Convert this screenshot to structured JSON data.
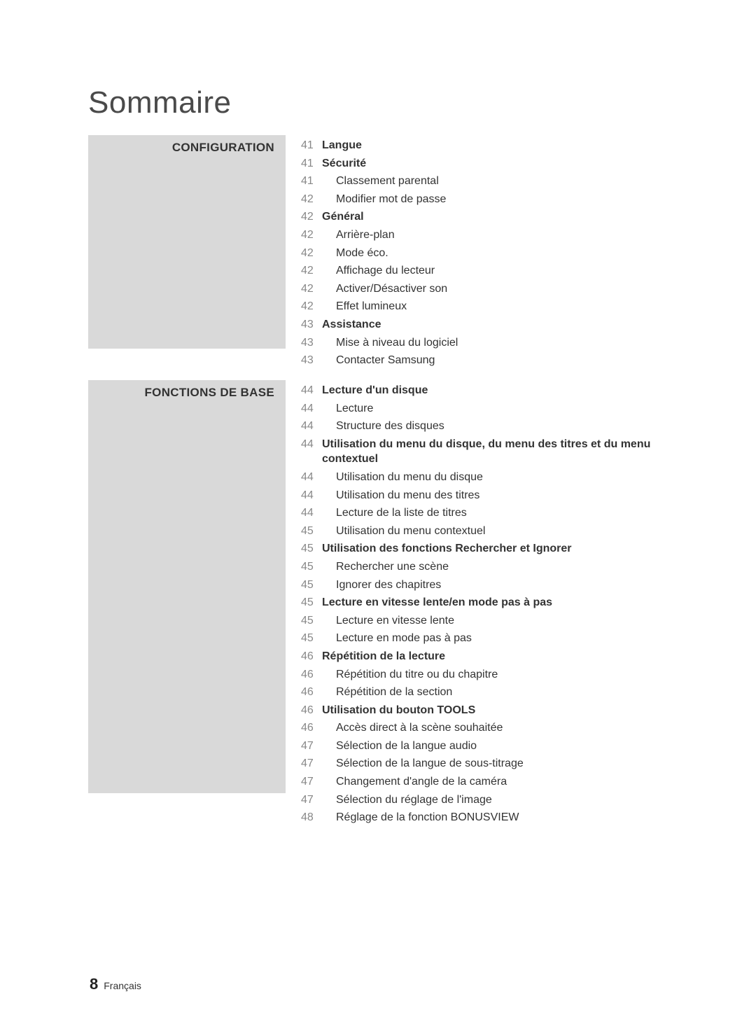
{
  "page": {
    "title": "Sommaire",
    "title_color": "#4a4a4a",
    "title_fontsize": 44,
    "background_color": "#ffffff",
    "label_bg_color": "#d9d9d9",
    "text_color": "#333333",
    "page_number_color": "#888888",
    "body_fontsize": 16,
    "label_fontsize": 17
  },
  "sections": {
    "config": {
      "label": "CONFIGURATION",
      "entries": [
        {
          "page": "41",
          "text": "Langue",
          "bold": true,
          "indent": false
        },
        {
          "page": "41",
          "text": "Sécurité",
          "bold": true,
          "indent": false
        },
        {
          "page": "41",
          "text": "Classement parental",
          "bold": false,
          "indent": true
        },
        {
          "page": "42",
          "text": "Modifier mot de passe",
          "bold": false,
          "indent": true
        },
        {
          "page": "42",
          "text": "Général",
          "bold": true,
          "indent": false
        },
        {
          "page": "42",
          "text": "Arrière-plan",
          "bold": false,
          "indent": true
        },
        {
          "page": "42",
          "text": "Mode éco.",
          "bold": false,
          "indent": true
        },
        {
          "page": "42",
          "text": "Affichage du lecteur",
          "bold": false,
          "indent": true
        },
        {
          "page": "42",
          "text": "Activer/Désactiver son",
          "bold": false,
          "indent": true
        },
        {
          "page": "42",
          "text": "Effet lumineux",
          "bold": false,
          "indent": true
        },
        {
          "page": "43",
          "text": "Assistance",
          "bold": true,
          "indent": false
        },
        {
          "page": "43",
          "text": "Mise à niveau du logiciel",
          "bold": false,
          "indent": true
        },
        {
          "page": "43",
          "text": "Contacter Samsung",
          "bold": false,
          "indent": true
        }
      ]
    },
    "fonctions": {
      "label": "FONCTIONS DE BASE",
      "entries": [
        {
          "page": "44",
          "text": "Lecture d'un disque",
          "bold": true,
          "indent": false
        },
        {
          "page": "44",
          "text": "Lecture",
          "bold": false,
          "indent": true
        },
        {
          "page": "44",
          "text": "Structure des disques",
          "bold": false,
          "indent": true
        },
        {
          "page": "44",
          "text": "Utilisation du menu du disque, du menu des titres et du menu contextuel",
          "bold": true,
          "indent": false
        },
        {
          "page": "44",
          "text": "Utilisation du menu du disque",
          "bold": false,
          "indent": true
        },
        {
          "page": "44",
          "text": "Utilisation du menu des titres",
          "bold": false,
          "indent": true
        },
        {
          "page": "44",
          "text": "Lecture de la liste de titres",
          "bold": false,
          "indent": true
        },
        {
          "page": "45",
          "text": "Utilisation du menu contextuel",
          "bold": false,
          "indent": true
        },
        {
          "page": "45",
          "text": "Utilisation des fonctions Rechercher et Ignorer",
          "bold": true,
          "indent": false
        },
        {
          "page": "45",
          "text": "Rechercher une scène",
          "bold": false,
          "indent": true
        },
        {
          "page": "45",
          "text": "Ignorer des chapitres",
          "bold": false,
          "indent": true
        },
        {
          "page": "45",
          "text": "Lecture en vitesse lente/en mode pas à pas",
          "bold": true,
          "indent": false
        },
        {
          "page": "45",
          "text": "Lecture en vitesse lente",
          "bold": false,
          "indent": true
        },
        {
          "page": "45",
          "text": "Lecture en mode pas à pas",
          "bold": false,
          "indent": true
        },
        {
          "page": "46",
          "text": "Répétition de la lecture",
          "bold": true,
          "indent": false
        },
        {
          "page": "46",
          "text": "Répétition du titre ou du chapitre",
          "bold": false,
          "indent": true
        },
        {
          "page": "46",
          "text": "Répétition de la section",
          "bold": false,
          "indent": true
        },
        {
          "page": "46",
          "text": "Utilisation du bouton TOOLS",
          "bold": true,
          "indent": false
        },
        {
          "page": "46",
          "text": "Accès direct à la scène souhaitée",
          "bold": false,
          "indent": true
        },
        {
          "page": "47",
          "text": "Sélection de la langue audio",
          "bold": false,
          "indent": true
        },
        {
          "page": "47",
          "text": "Sélection de la langue de sous-titrage",
          "bold": false,
          "indent": true
        },
        {
          "page": "47",
          "text": "Changement d'angle de la caméra",
          "bold": false,
          "indent": true
        },
        {
          "page": "47",
          "text": "Sélection du réglage de l'image",
          "bold": false,
          "indent": true
        },
        {
          "page": "48",
          "text": "Réglage de la fonction BONUSVIEW",
          "bold": false,
          "indent": true
        }
      ]
    }
  },
  "footer": {
    "page_number": "8",
    "language": "Français"
  }
}
